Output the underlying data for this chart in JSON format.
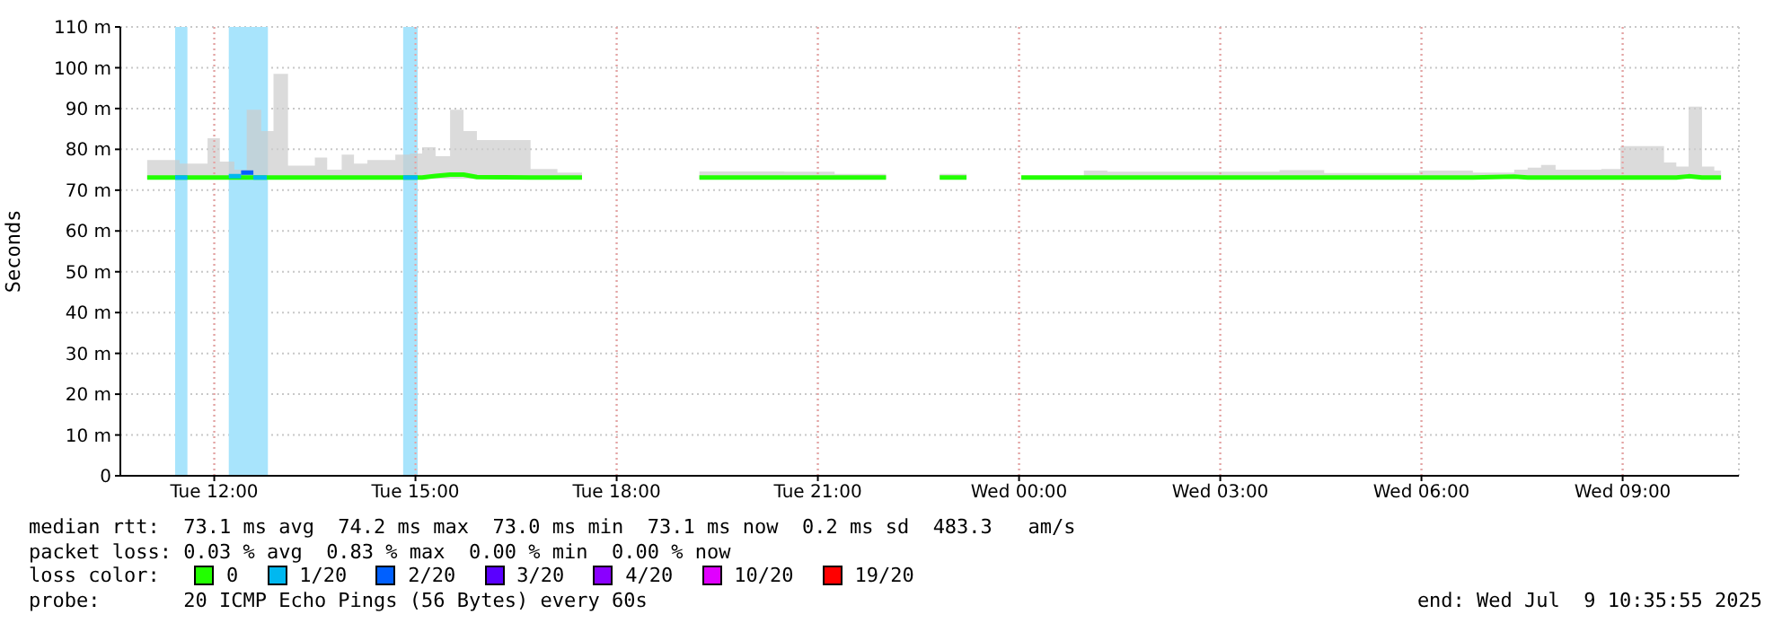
{
  "chart_data": {
    "type": "line",
    "ylabel": "Seconds",
    "legend_title": "loss color:",
    "legend": "bottom",
    "grid": true,
    "xlim": [
      "2025-07-08T10:36",
      "2025-07-09T10:44"
    ],
    "xticks": [
      {
        "value": "2025-07-08T12:00",
        "label": "Tue 12:00"
      },
      {
        "value": "2025-07-08T15:00",
        "label": "Tue 15:00"
      },
      {
        "value": "2025-07-08T18:00",
        "label": "Tue 18:00"
      },
      {
        "value": "2025-07-08T21:00",
        "label": "Tue 21:00"
      },
      {
        "value": "2025-07-09T00:00",
        "label": "Wed 00:00"
      },
      {
        "value": "2025-07-09T03:00",
        "label": "Wed 03:00"
      },
      {
        "value": "2025-07-09T06:00",
        "label": "Wed 06:00"
      },
      {
        "value": "2025-07-09T09:00",
        "label": "Wed 09:00"
      }
    ],
    "ylim": [
      0,
      110
    ],
    "yticks": [
      0,
      {
        "value": 10,
        "label": "10 m"
      },
      {
        "value": 20,
        "label": "20 m"
      },
      {
        "value": 30,
        "label": "30 m"
      },
      {
        "value": 40,
        "label": "40 m"
      },
      {
        "value": 50,
        "label": "50 m"
      },
      {
        "value": 60,
        "label": "60 m"
      },
      {
        "value": 70,
        "label": "70 m"
      },
      {
        "value": 80,
        "label": "80 m"
      },
      {
        "value": 90,
        "label": "90 m"
      },
      {
        "value": 100,
        "label": "100 m"
      },
      {
        "value": 110,
        "label": "110 m"
      }
    ],
    "bands": [
      {
        "axis": "x",
        "from": "2025-07-08T11:25",
        "to": "2025-07-08T11:36",
        "color": "#a8e4fc"
      },
      {
        "axis": "x",
        "from": "2025-07-08T12:13",
        "to": "2025-07-08T12:48",
        "color": "#a8e4fc"
      },
      {
        "axis": "x",
        "from": "2025-07-08T14:49",
        "to": "2025-07-08T15:02",
        "color": "#a8e4fc"
      }
    ],
    "series": [
      {
        "name": "0",
        "color": "#22ff00",
        "x": [
          "2025-07-08T11:00",
          "2025-07-08T11:05",
          "2025-07-08T11:29",
          "2025-07-08T11:42",
          "2025-07-08T11:54",
          "2025-07-08T12:05",
          "2025-07-08T12:18",
          "2025-07-08T12:29",
          "2025-07-08T12:42",
          "2025-07-08T12:53",
          "2025-07-08T13:06",
          "2025-07-08T13:30",
          "2025-07-08T13:41",
          "2025-07-08T13:54",
          "2025-07-08T14:05",
          "2025-07-08T14:17",
          "2025-07-08T14:42",
          "2025-07-08T14:55",
          "2025-07-08T15:06",
          "2025-07-08T15:18",
          "2025-07-08T15:31",
          "2025-07-08T15:43",
          "2025-07-08T15:55",
          "2025-07-08T16:43",
          "2025-07-08T17:07",
          "2025-07-08T17:29",
          "2025-07-08T18:30",
          "2025-07-08T19:14",
          "2025-07-08T19:36",
          "2025-07-08T20:30",
          "2025-07-08T21:15",
          "2025-07-08T22:01",
          "2025-07-08T22:20",
          "2025-07-08T22:49",
          "2025-07-08T23:13",
          "2025-07-08T23:40",
          "2025-07-09T00:02",
          "2025-07-09T00:58",
          "2025-07-09T01:19",
          "2025-07-09T03:53",
          "2025-07-09T04:33",
          "2025-07-09T05:58",
          "2025-07-09T06:46",
          "2025-07-09T07:23",
          "2025-07-09T07:35",
          "2025-07-09T07:47",
          "2025-07-09T08:00",
          "2025-07-09T08:41",
          "2025-07-09T08:58",
          "2025-07-09T09:37",
          "2025-07-09T09:48",
          "2025-07-09T09:59",
          "2025-07-09T10:11",
          "2025-07-09T10:22",
          "2025-07-09T10:28"
        ],
        "values": [
          73.1,
          73.1,
          73.1,
          73.1,
          73.1,
          73.1,
          73.1,
          73.1,
          73.1,
          73.1,
          73.1,
          73.1,
          73.1,
          73.1,
          73.1,
          73.1,
          73.1,
          73.1,
          73.1,
          73.5,
          73.8,
          73.8,
          73.2,
          73.1,
          73.1,
          73.1,
          null,
          73.1,
          73.1,
          73.1,
          73.1,
          73.1,
          null,
          73.1,
          73.1,
          null,
          73.1,
          73.1,
          73.1,
          73.1,
          73.1,
          73.1,
          73.1,
          73.3,
          73.1,
          73.1,
          73.1,
          73.1,
          73.1,
          73.1,
          73.1,
          73.4,
          73.1,
          73.1,
          73.1
        ],
        "lower": [
          72.8,
          72.8,
          72.8,
          72.8,
          72.8,
          72.8,
          72.8,
          72.8,
          72.8,
          72.8,
          72.8,
          72.8,
          72.8,
          72.8,
          72.8,
          72.8,
          72.8,
          72.8,
          72.8,
          72.8,
          72.8,
          72.8,
          72.8,
          72.8,
          72.8,
          72.8,
          null,
          72.8,
          72.8,
          72.8,
          72.8,
          72.8,
          null,
          72.8,
          72.8,
          null,
          72.8,
          72.8,
          72.8,
          72.8,
          72.8,
          72.8,
          72.8,
          72.8,
          72.8,
          72.8,
          72.8,
          72.8,
          72.8,
          72.8,
          72.8,
          72.8,
          72.8,
          72.8,
          72.8
        ],
        "upper": [
          77.4,
          77.4,
          76.5,
          76.5,
          82.7,
          77,
          75,
          89.7,
          84.5,
          98.5,
          76,
          78,
          75,
          78.7,
          76.5,
          77.4,
          78.7,
          79,
          80.5,
          78.3,
          89.7,
          84.5,
          82.3,
          75.2,
          74.3,
          73.5,
          null,
          74.6,
          74.6,
          74.5,
          74,
          73.5,
          null,
          74,
          73.5,
          null,
          73.5,
          74.8,
          74.5,
          74.9,
          74.2,
          74.8,
          74.3,
          75,
          75.5,
          76.2,
          75,
          75.2,
          80.8,
          76.8,
          75.8,
          90.5,
          75.8,
          74.8,
          73.5
        ]
      },
      {
        "name": "1/20",
        "color": "#00b8f0",
        "x": [
          "2025-07-08T11:25",
          "2025-07-08T11:36",
          "2025-07-08T11:50",
          "2025-07-08T12:13",
          "2025-07-08T12:24",
          "2025-07-08T12:30",
          "2025-07-08T12:35",
          "2025-07-08T12:47",
          "2025-07-08T13:30",
          "2025-07-08T14:49",
          "2025-07-08T15:02"
        ],
        "values": [
          73.1,
          73.1,
          null,
          73.4,
          73.4,
          null,
          73.1,
          73.1,
          null,
          73.1,
          73.1
        ]
      },
      {
        "name": "2/20",
        "color": "#0060ff",
        "x": [
          "2025-07-08T12:24",
          "2025-07-08T12:35"
        ],
        "values": [
          74.3,
          74.3
        ]
      },
      {
        "name": "3/20",
        "color": "#5a00ff"
      },
      {
        "name": "4/20",
        "color": "#8a00ff"
      },
      {
        "name": "10/20",
        "color": "#e000ff"
      },
      {
        "name": "19/20",
        "color": "#ff0000"
      }
    ],
    "annotations": [
      "median rtt:  73.1 ms avg  74.2 ms max  73.0 ms min  73.1 ms now  0.2 ms sd  483.3   am/s",
      "packet loss: 0.03 % avg  0.83 % max  0.00 % min  0.00 % now",
      "probe:       20 ICMP Echo Pings (56 Bytes) every 60s",
      "end: Wed Jul  9 10:35:55 2025"
    ]
  }
}
